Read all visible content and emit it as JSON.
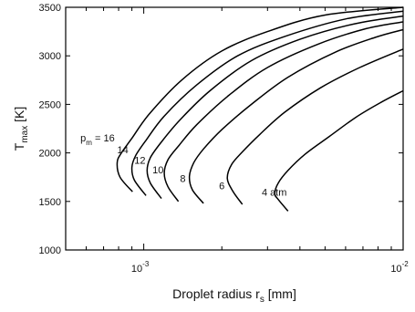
{
  "chart_data": {
    "type": "line",
    "title": "",
    "xlabel": "Droplet radius r",
    "xlabel_sub": "s",
    "xlabel_unit": " [mm]",
    "ylabel": "T",
    "ylabel_sub": "max",
    "ylabel_unit": " [K]",
    "xscale": "log",
    "xlim": [
      0.0005,
      0.01
    ],
    "ylim": [
      1000,
      3500
    ],
    "grid": false,
    "legend": "none",
    "yticks": [
      1000,
      1500,
      2000,
      2500,
      3000,
      3500
    ],
    "ytick_labels": [
      "1000",
      "1500",
      "2000",
      "2500",
      "3000",
      "3500"
    ],
    "xticks": [
      0.001,
      0.01
    ],
    "xtick_labels": [
      {
        "base": "10",
        "exp": "-3"
      },
      {
        "base": "10",
        "exp": "-2"
      }
    ],
    "series": [
      {
        "label": "p_m = 16",
        "points": [
          [
            0.000905,
            1600
          ],
          [
            0.00081,
            1750
          ],
          [
            0.00079,
            1900
          ],
          [
            0.00082,
            2000
          ],
          [
            0.0009,
            2150
          ],
          [
            0.00105,
            2400
          ],
          [
            0.0014,
            2750
          ],
          [
            0.002,
            3050
          ],
          [
            0.003,
            3250
          ],
          [
            0.005,
            3420
          ],
          [
            0.01,
            3500
          ]
        ]
      },
      {
        "label": "14",
        "points": [
          [
            0.00102,
            1560
          ],
          [
            0.00092,
            1720
          ],
          [
            0.0009,
            1850
          ],
          [
            0.00093,
            1970
          ],
          [
            0.00102,
            2130
          ],
          [
            0.0012,
            2380
          ],
          [
            0.0016,
            2700
          ],
          [
            0.0023,
            3000
          ],
          [
            0.0035,
            3200
          ],
          [
            0.006,
            3380
          ],
          [
            0.01,
            3460
          ]
        ]
      },
      {
        "label": "12",
        "points": [
          [
            0.00117,
            1530
          ],
          [
            0.00106,
            1690
          ],
          [
            0.00103,
            1820
          ],
          [
            0.00106,
            1950
          ],
          [
            0.00116,
            2100
          ],
          [
            0.00138,
            2340
          ],
          [
            0.0018,
            2640
          ],
          [
            0.0026,
            2950
          ],
          [
            0.004,
            3170
          ],
          [
            0.0065,
            3330
          ],
          [
            0.01,
            3410
          ]
        ]
      },
      {
        "label": "10",
        "points": [
          [
            0.00136,
            1500
          ],
          [
            0.00124,
            1650
          ],
          [
            0.0012,
            1790
          ],
          [
            0.00124,
            1930
          ],
          [
            0.00137,
            2080
          ],
          [
            0.0016,
            2290
          ],
          [
            0.0021,
            2580
          ],
          [
            0.003,
            2880
          ],
          [
            0.0047,
            3120
          ],
          [
            0.0072,
            3280
          ],
          [
            0.01,
            3350
          ]
        ]
      },
      {
        "label": "8",
        "points": [
          [
            0.0017,
            1480
          ],
          [
            0.00154,
            1620
          ],
          [
            0.0015,
            1760
          ],
          [
            0.00156,
            1900
          ],
          [
            0.0017,
            2040
          ],
          [
            0.002,
            2240
          ],
          [
            0.0026,
            2500
          ],
          [
            0.0036,
            2780
          ],
          [
            0.0055,
            3040
          ],
          [
            0.0078,
            3190
          ],
          [
            0.01,
            3270
          ]
        ]
      },
      {
        "label": "6",
        "points": [
          [
            0.0024,
            1470
          ],
          [
            0.0022,
            1610
          ],
          [
            0.0021,
            1740
          ],
          [
            0.00218,
            1880
          ],
          [
            0.0024,
            2010
          ],
          [
            0.0028,
            2190
          ],
          [
            0.0035,
            2420
          ],
          [
            0.0048,
            2670
          ],
          [
            0.0068,
            2880
          ],
          [
            0.01,
            3070
          ]
        ]
      },
      {
        "label": "4 atm",
        "points": [
          [
            0.0036,
            1400
          ],
          [
            0.0033,
            1520
          ],
          [
            0.0032,
            1580
          ],
          [
            0.0033,
            1690
          ],
          [
            0.0036,
            1820
          ],
          [
            0.0042,
            1990
          ],
          [
            0.0052,
            2170
          ],
          [
            0.0066,
            2370
          ],
          [
            0.0082,
            2520
          ],
          [
            0.01,
            2640
          ]
        ]
      }
    ],
    "annotations": [
      {
        "text": "p",
        "sub": "m",
        "rest": " = 16",
        "x": 0.00057,
        "y": 2120
      },
      {
        "text": "14",
        "x": 0.00079,
        "y": 1995
      },
      {
        "text": "12",
        "x": 0.00092,
        "y": 1890
      },
      {
        "text": "10",
        "x": 0.00108,
        "y": 1790
      },
      {
        "text": "8",
        "x": 0.00138,
        "y": 1700
      },
      {
        "text": "6",
        "x": 0.00195,
        "y": 1625
      },
      {
        "text": "4 atm",
        "x": 0.00285,
        "y": 1560
      }
    ]
  }
}
